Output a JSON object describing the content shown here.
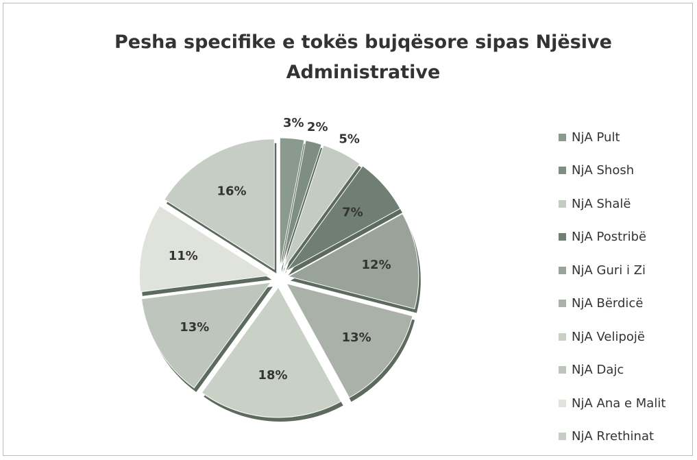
{
  "chart_data": {
    "type": "pie",
    "title": "Pesha specifike e tokës bujqësore sipas Njësive Administrative",
    "categories": [
      "NjA Pult",
      "NjA Shosh",
      "NjA Shalë",
      "NjA Postribë",
      "NjA Guri i Zi",
      "NjA Bërdicë",
      "NjA Velipojë",
      "NjA Dajc",
      "NjA Ana e Malit",
      "NjA Rrethinat"
    ],
    "values": [
      3,
      2,
      5,
      7,
      12,
      13,
      18,
      13,
      11,
      16
    ],
    "value_labels": [
      "3%",
      "2%",
      "5%",
      "7%",
      "12%",
      "13%",
      "18%",
      "13%",
      "11%",
      "16%"
    ],
    "colors": [
      "#8a9a8c",
      "#7e8e82",
      "#c3cbc2",
      "#707f73",
      "#99a399",
      "#a9b1a8",
      "#c9d0c6",
      "#bdc5bc",
      "#dfe3dc",
      "#c6cdc4"
    ],
    "legend": "right"
  }
}
